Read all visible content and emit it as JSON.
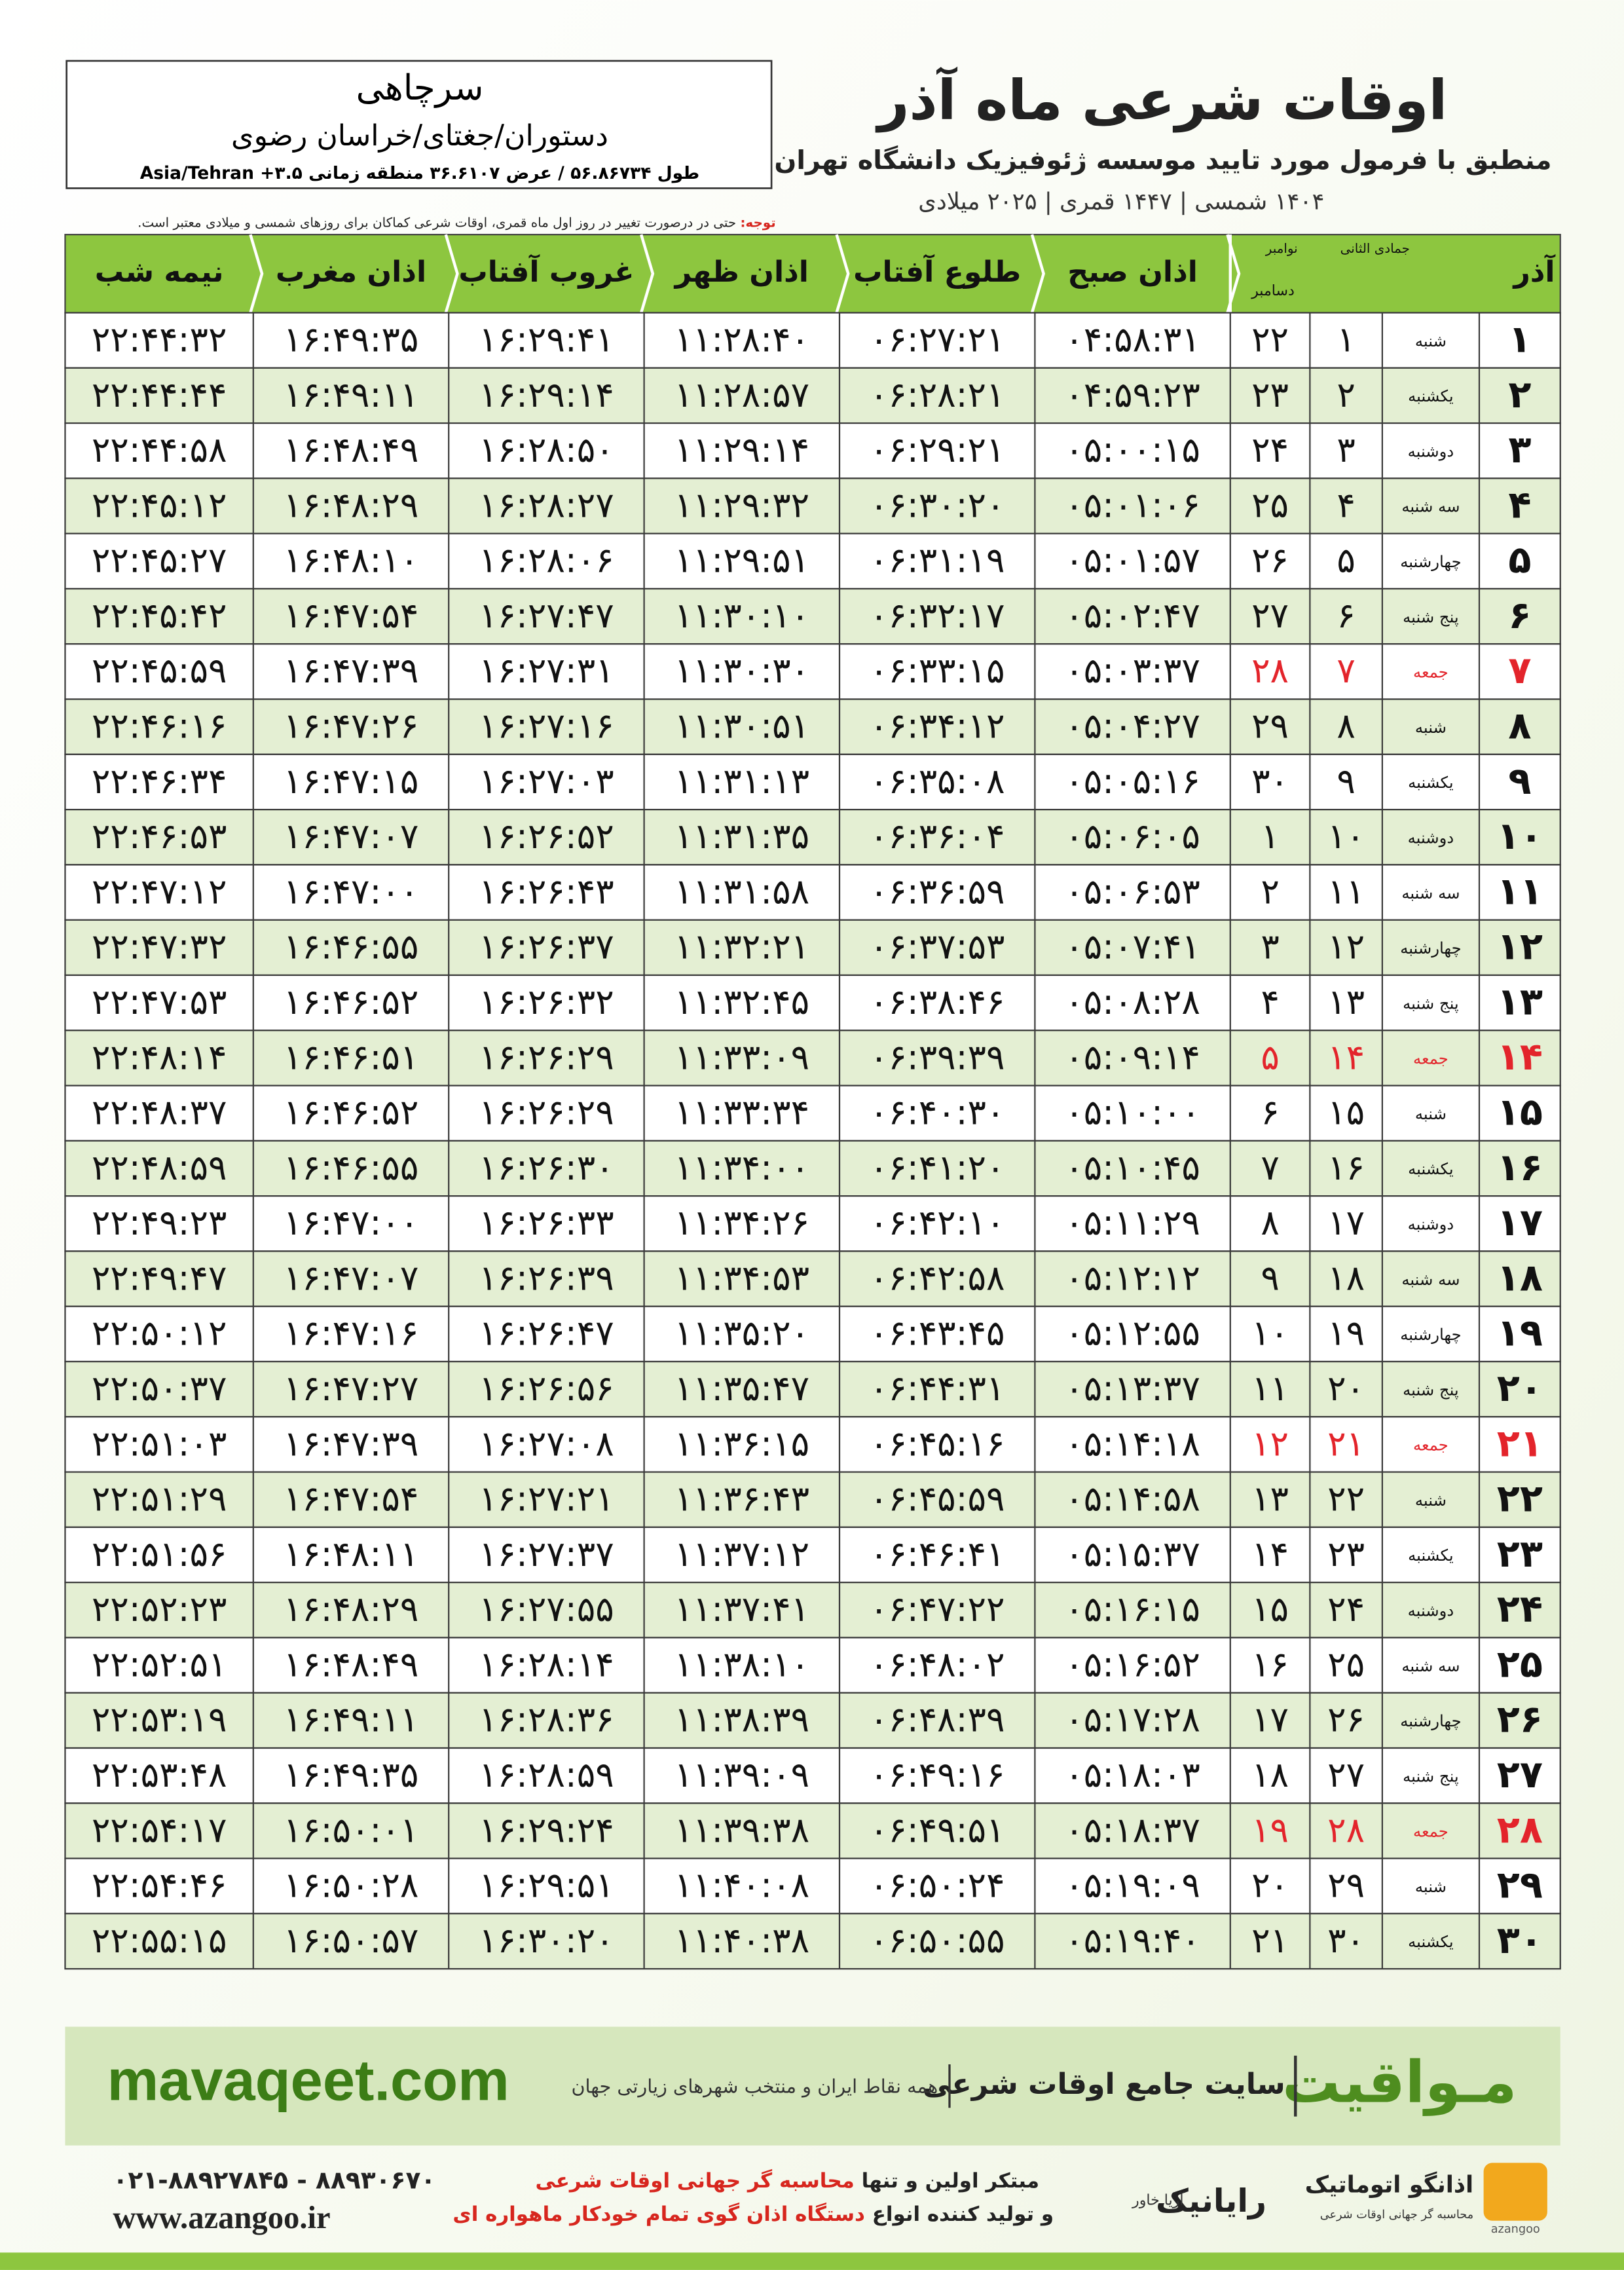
{
  "header": {
    "title": "اوقات شرعی ماه آذر",
    "subtitle": "منطبق با فرمول مورد تایید موسسه ژئوفیزیک دانشگاه تهران",
    "date_line": "۱۴۰۴ شمسی | ۱۴۴۷ قمری | ۲۰۲۵ میلادی"
  },
  "location": {
    "city": "سرچاهی",
    "region": "دستوران/جغتای/خراسان رضوی",
    "coords": "طول ۵۶.۸۶۷۳۴ / عرض ۳۶.۶۱۰۷ منطقه زمانی ۳.۵+ Asia/Tehran"
  },
  "note": {
    "label": "توجه:",
    "text": "حتی در درصورت تغییر در روز اول ماه قمری، اوقات شرعی کماکان برای روزهای شمسی و میلادی معتبر است."
  },
  "table": {
    "header": {
      "month": "آذر",
      "hijri_month": "جمادی الثانی",
      "greg_months": [
        "نوامبر",
        "دسامبر"
      ],
      "columns": [
        "اذان صبح",
        "طلوع آفتاب",
        "اذان ظهر",
        "غروب آفتاب",
        "اذان مغرب",
        "نیمه شب"
      ]
    },
    "highlight_color": "#e3242b",
    "rows": [
      {
        "cells": [
          "۱",
          "شنبه",
          "۱",
          "۲۲",
          "۰۴:۵۸:۳۱",
          "۰۶:۲۷:۲۱",
          "۱۱:۲۸:۴۰",
          "۱۶:۲۹:۴۱",
          "۱۶:۴۹:۳۵",
          "۲۲:۴۴:۳۲"
        ]
      },
      {
        "cells": [
          "۲",
          "یکشنبه",
          "۲",
          "۲۳",
          "۰۴:۵۹:۲۳",
          "۰۶:۲۸:۲۱",
          "۱۱:۲۸:۵۷",
          "۱۶:۲۹:۱۴",
          "۱۶:۴۹:۱۱",
          "۲۲:۴۴:۴۴"
        ]
      },
      {
        "cells": [
          "۳",
          "دوشنبه",
          "۳",
          "۲۴",
          "۰۵:۰۰:۱۵",
          "۰۶:۲۹:۲۱",
          "۱۱:۲۹:۱۴",
          "۱۶:۲۸:۵۰",
          "۱۶:۴۸:۴۹",
          "۲۲:۴۴:۵۸"
        ]
      },
      {
        "cells": [
          "۴",
          "سه شنبه",
          "۴",
          "۲۵",
          "۰۵:۰۱:۰۶",
          "۰۶:۳۰:۲۰",
          "۱۱:۲۹:۳۲",
          "۱۶:۲۸:۲۷",
          "۱۶:۴۸:۲۹",
          "۲۲:۴۵:۱۲"
        ]
      },
      {
        "cells": [
          "۵",
          "چهارشنبه",
          "۵",
          "۲۶",
          "۰۵:۰۱:۵۷",
          "۰۶:۳۱:۱۹",
          "۱۱:۲۹:۵۱",
          "۱۶:۲۸:۰۶",
          "۱۶:۴۸:۱۰",
          "۲۲:۴۵:۲۷"
        ]
      },
      {
        "cells": [
          "۶",
          "پنج شنبه",
          "۶",
          "۲۷",
          "۰۵:۰۲:۴۷",
          "۰۶:۳۲:۱۷",
          "۱۱:۳۰:۱۰",
          "۱۶:۲۷:۴۷",
          "۱۶:۴۷:۵۴",
          "۲۲:۴۵:۴۲"
        ]
      },
      {
        "cells": [
          "۷",
          "جمعه",
          "۷",
          "۲۸",
          "۰۵:۰۳:۳۷",
          "۰۶:۳۳:۱۵",
          "۱۱:۳۰:۳۰",
          "۱۶:۲۷:۳۱",
          "۱۶:۴۷:۳۹",
          "۲۲:۴۵:۵۹"
        ],
        "highlight": true
      },
      {
        "cells": [
          "۸",
          "شنبه",
          "۸",
          "۲۹",
          "۰۵:۰۴:۲۷",
          "۰۶:۳۴:۱۲",
          "۱۱:۳۰:۵۱",
          "۱۶:۲۷:۱۶",
          "۱۶:۴۷:۲۶",
          "۲۲:۴۶:۱۶"
        ]
      },
      {
        "cells": [
          "۹",
          "یکشنبه",
          "۹",
          "۳۰",
          "۰۵:۰۵:۱۶",
          "۰۶:۳۵:۰۸",
          "۱۱:۳۱:۱۳",
          "۱۶:۲۷:۰۳",
          "۱۶:۴۷:۱۵",
          "۲۲:۴۶:۳۴"
        ]
      },
      {
        "cells": [
          "۱۰",
          "دوشنبه",
          "۱۰",
          "۱",
          "۰۵:۰۶:۰۵",
          "۰۶:۳۶:۰۴",
          "۱۱:۳۱:۳۵",
          "۱۶:۲۶:۵۲",
          "۱۶:۴۷:۰۷",
          "۲۲:۴۶:۵۳"
        ]
      },
      {
        "cells": [
          "۱۱",
          "سه شنبه",
          "۱۱",
          "۲",
          "۰۵:۰۶:۵۳",
          "۰۶:۳۶:۵۹",
          "۱۱:۳۱:۵۸",
          "۱۶:۲۶:۴۳",
          "۱۶:۴۷:۰۰",
          "۲۲:۴۷:۱۲"
        ]
      },
      {
        "cells": [
          "۱۲",
          "چهارشنبه",
          "۱۲",
          "۳",
          "۰۵:۰۷:۴۱",
          "۰۶:۳۷:۵۳",
          "۱۱:۳۲:۲۱",
          "۱۶:۲۶:۳۷",
          "۱۶:۴۶:۵۵",
          "۲۲:۴۷:۳۲"
        ]
      },
      {
        "cells": [
          "۱۳",
          "پنج شنبه",
          "۱۳",
          "۴",
          "۰۵:۰۸:۲۸",
          "۰۶:۳۸:۴۶",
          "۱۱:۳۲:۴۵",
          "۱۶:۲۶:۳۲",
          "۱۶:۴۶:۵۲",
          "۲۲:۴۷:۵۳"
        ]
      },
      {
        "cells": [
          "۱۴",
          "جمعه",
          "۱۴",
          "۵",
          "۰۵:۰۹:۱۴",
          "۰۶:۳۹:۳۹",
          "۱۱:۳۳:۰۹",
          "۱۶:۲۶:۲۹",
          "۱۶:۴۶:۵۱",
          "۲۲:۴۸:۱۴"
        ],
        "highlight": true
      },
      {
        "cells": [
          "۱۵",
          "شنبه",
          "۱۵",
          "۶",
          "۰۵:۱۰:۰۰",
          "۰۶:۴۰:۳۰",
          "۱۱:۳۳:۳۴",
          "۱۶:۲۶:۲۹",
          "۱۶:۴۶:۵۲",
          "۲۲:۴۸:۳۷"
        ]
      },
      {
        "cells": [
          "۱۶",
          "یکشنبه",
          "۱۶",
          "۷",
          "۰۵:۱۰:۴۵",
          "۰۶:۴۱:۲۰",
          "۱۱:۳۴:۰۰",
          "۱۶:۲۶:۳۰",
          "۱۶:۴۶:۵۵",
          "۲۲:۴۸:۵۹"
        ]
      },
      {
        "cells": [
          "۱۷",
          "دوشنبه",
          "۱۷",
          "۸",
          "۰۵:۱۱:۲۹",
          "۰۶:۴۲:۱۰",
          "۱۱:۳۴:۲۶",
          "۱۶:۲۶:۳۳",
          "۱۶:۴۷:۰۰",
          "۲۲:۴۹:۲۳"
        ]
      },
      {
        "cells": [
          "۱۸",
          "سه شنبه",
          "۱۸",
          "۹",
          "۰۵:۱۲:۱۲",
          "۰۶:۴۲:۵۸",
          "۱۱:۳۴:۵۳",
          "۱۶:۲۶:۳۹",
          "۱۶:۴۷:۰۷",
          "۲۲:۴۹:۴۷"
        ]
      },
      {
        "cells": [
          "۱۹",
          "چهارشنبه",
          "۱۹",
          "۱۰",
          "۰۵:۱۲:۵۵",
          "۰۶:۴۳:۴۵",
          "۱۱:۳۵:۲۰",
          "۱۶:۲۶:۴۷",
          "۱۶:۴۷:۱۶",
          "۲۲:۵۰:۱۲"
        ]
      },
      {
        "cells": [
          "۲۰",
          "پنج شنبه",
          "۲۰",
          "۱۱",
          "۰۵:۱۳:۳۷",
          "۰۶:۴۴:۳۱",
          "۱۱:۳۵:۴۷",
          "۱۶:۲۶:۵۶",
          "۱۶:۴۷:۲۷",
          "۲۲:۵۰:۳۷"
        ]
      },
      {
        "cells": [
          "۲۱",
          "جمعه",
          "۲۱",
          "۱۲",
          "۰۵:۱۴:۱۸",
          "۰۶:۴۵:۱۶",
          "۱۱:۳۶:۱۵",
          "۱۶:۲۷:۰۸",
          "۱۶:۴۷:۳۹",
          "۲۲:۵۱:۰۳"
        ],
        "highlight": true
      },
      {
        "cells": [
          "۲۲",
          "شنبه",
          "۲۲",
          "۱۳",
          "۰۵:۱۴:۵۸",
          "۰۶:۴۵:۵۹",
          "۱۱:۳۶:۴۳",
          "۱۶:۲۷:۲۱",
          "۱۶:۴۷:۵۴",
          "۲۲:۵۱:۲۹"
        ]
      },
      {
        "cells": [
          "۲۳",
          "یکشنبه",
          "۲۳",
          "۱۴",
          "۰۵:۱۵:۳۷",
          "۰۶:۴۶:۴۱",
          "۱۱:۳۷:۱۲",
          "۱۶:۲۷:۳۷",
          "۱۶:۴۸:۱۱",
          "۲۲:۵۱:۵۶"
        ]
      },
      {
        "cells": [
          "۲۴",
          "دوشنبه",
          "۲۴",
          "۱۵",
          "۰۵:۱۶:۱۵",
          "۰۶:۴۷:۲۲",
          "۱۱:۳۷:۴۱",
          "۱۶:۲۷:۵۵",
          "۱۶:۴۸:۲۹",
          "۲۲:۵۲:۲۳"
        ]
      },
      {
        "cells": [
          "۲۵",
          "سه شنبه",
          "۲۵",
          "۱۶",
          "۰۵:۱۶:۵۲",
          "۰۶:۴۸:۰۲",
          "۱۱:۳۸:۱۰",
          "۱۶:۲۸:۱۴",
          "۱۶:۴۸:۴۹",
          "۲۲:۵۲:۵۱"
        ]
      },
      {
        "cells": [
          "۲۶",
          "چهارشنبه",
          "۲۶",
          "۱۷",
          "۰۵:۱۷:۲۸",
          "۰۶:۴۸:۳۹",
          "۱۱:۳۸:۳۹",
          "۱۶:۲۸:۳۶",
          "۱۶:۴۹:۱۱",
          "۲۲:۵۳:۱۹"
        ]
      },
      {
        "cells": [
          "۲۷",
          "پنج شنبه",
          "۲۷",
          "۱۸",
          "۰۵:۱۸:۰۳",
          "۰۶:۴۹:۱۶",
          "۱۱:۳۹:۰۹",
          "۱۶:۲۸:۵۹",
          "۱۶:۴۹:۳۵",
          "۲۲:۵۳:۴۸"
        ]
      },
      {
        "cells": [
          "۲۸",
          "جمعه",
          "۲۸",
          "۱۹",
          "۰۵:۱۸:۳۷",
          "۰۶:۴۹:۵۱",
          "۱۱:۳۹:۳۸",
          "۱۶:۲۹:۲۴",
          "۱۶:۵۰:۰۱",
          "۲۲:۵۴:۱۷"
        ],
        "highlight": true
      },
      {
        "cells": [
          "۲۹",
          "شنبه",
          "۲۹",
          "۲۰",
          "۰۵:۱۹:۰۹",
          "۰۶:۵۰:۲۴",
          "۱۱:۴۰:۰۸",
          "۱۶:۲۹:۵۱",
          "۱۶:۵۰:۲۸",
          "۲۲:۵۴:۴۶"
        ]
      },
      {
        "cells": [
          "۳۰",
          "یکشنبه",
          "۳۰",
          "۲۱",
          "۰۵:۱۹:۴۰",
          "۰۶:۵۰:۵۵",
          "۱۱:۴۰:۳۸",
          "۱۶:۳۰:۲۰",
          "۱۶:۵۰:۵۷",
          "۲۲:۵۵:۱۵"
        ]
      }
    ]
  },
  "footer": {
    "brand": "مـواقیت",
    "slogan": "سایت جامع اوقات شرعی",
    "coverage": "همه نقاط ایران و منتخب شهرهای زیارتی جهان",
    "site": "mavaqeet.com",
    "phone": "۰۲۱-۸۸۹۲۷۸۴۵ - ۸۸۹۳۰۶۷۰",
    "web": "www.azangoo.ir",
    "line1_a": "مبتکر اولین و تنها",
    "line1_b": "محاسبه گر جهانی اوقات شرعی",
    "line2_a": "و تولید کننده انواع",
    "line2_b": "دستگاه اذان گوی تمام خودکار ماهواره ای",
    "logo_raianik": "رایانیک",
    "logo_aria": "آریا خاور",
    "logo_azangoo": "اذانگو اتوماتیک",
    "logo_azangoo_sub": "محاسبه گر جهانی اوقات شرعی",
    "logo_azangoo_en": "azangoo"
  }
}
